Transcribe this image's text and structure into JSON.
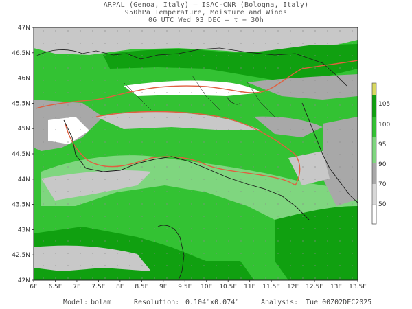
{
  "header": {
    "line1": "ARPAL (Genoa, Italy)  —  ISAC-CNR (Bologna, Italy)",
    "line2": "950hPa Temperature, Moisture and Winds",
    "line3": "06 UTC Wed 03 DEC  —  τ = 30h"
  },
  "map": {
    "lat_labels": [
      "47N",
      "46.5N",
      "46N",
      "45.5N",
      "45N",
      "44.5N",
      "44N",
      "43.5N",
      "43N",
      "42.5N",
      "42N"
    ],
    "lat_values": [
      47,
      46.5,
      46,
      45.5,
      45,
      44.5,
      44,
      43.5,
      43,
      42.5,
      42
    ],
    "lon_labels": [
      "6E",
      "6.5E",
      "7E",
      "7.5E",
      "8E",
      "8.5E",
      "9E",
      "9.5E",
      "10E",
      "10.5E",
      "11E",
      "11.5E",
      "12E",
      "12.5E",
      "13E",
      "13.5E"
    ],
    "lon_values": [
      6,
      6.5,
      7,
      7.5,
      8,
      8.5,
      9,
      9.5,
      10,
      10.5,
      11,
      11.5,
      12,
      12.5,
      13,
      13.5
    ],
    "colors": {
      "white": "#ffffff",
      "light_gray": "#c8c8c8",
      "gray": "#a8a8a8",
      "light_green": "#7fd67f",
      "green": "#33c233",
      "dark_green": "#10a010",
      "yellow": "#d8d860",
      "contour": "#e06040",
      "coast": "#1a1a1a"
    }
  },
  "colorbar": {
    "ticks": [
      "105",
      "100",
      "95",
      "90",
      "70",
      "50"
    ],
    "tick_values": [
      105,
      100,
      95,
      90,
      70,
      50
    ],
    "colors": [
      "#ffffff",
      "#d8d8d8",
      "#a8a8a8",
      "#7fd67f",
      "#33c233",
      "#10a010",
      "#d8d860"
    ]
  },
  "footer": {
    "model_label": "Model:",
    "model_value": "bolam",
    "resolution_label": "Resolution:",
    "resolution_value": "0.104°x0.074°",
    "analysis_label": "Analysis:",
    "analysis_value": "Tue 00Z02DEC2025"
  }
}
